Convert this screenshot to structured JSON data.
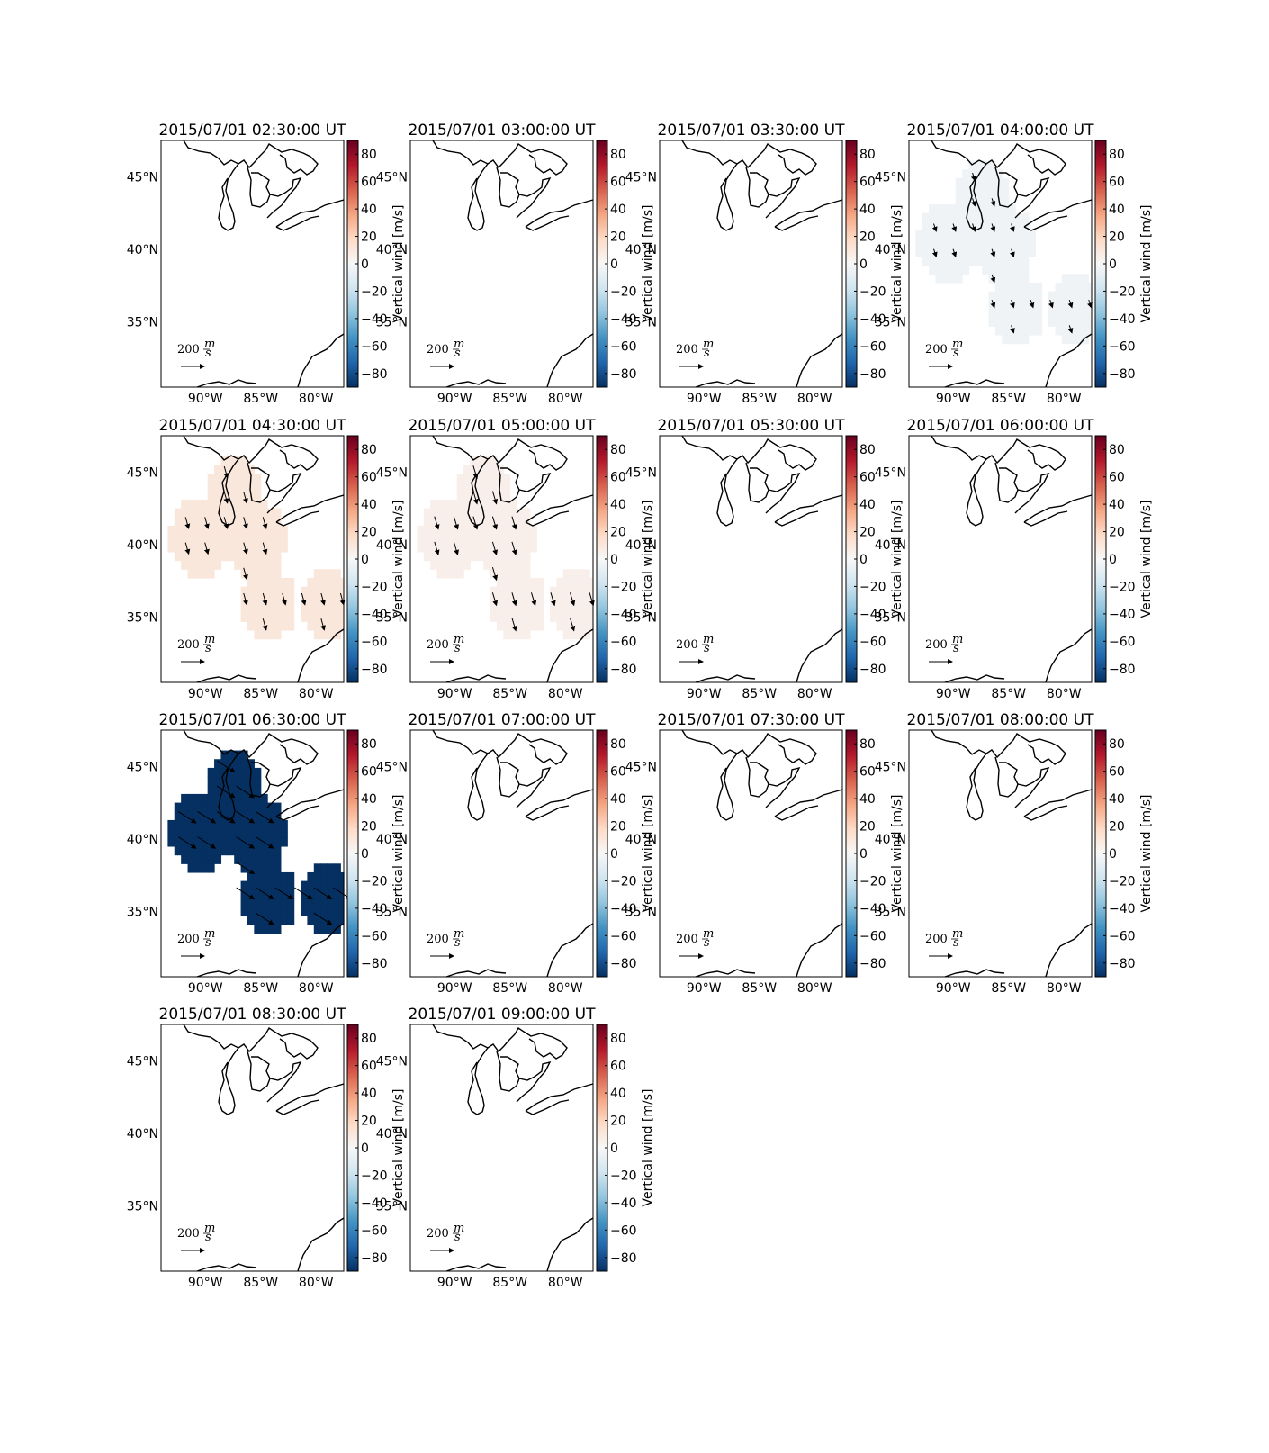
{
  "chart_data": {
    "type": "heatmap",
    "description_units": "vertical wind m/s; arrows show horizontal wind",
    "colorbar": {
      "label": "Vertical wind [m/s]",
      "range": [
        -90,
        90
      ],
      "ticks": [
        "80",
        "60",
        "40",
        "20",
        "0",
        "−20",
        "−40",
        "−60",
        "−80"
      ],
      "colormap": "RdBu_r"
    },
    "axes": {
      "x_ticks": [
        "90°W",
        "85°W",
        "80°W"
      ],
      "y_ticks": [
        "45°N",
        "40°N",
        "35°N"
      ],
      "lon_range": [
        -94,
        -77.5
      ],
      "lat_range": [
        30.5,
        47.5
      ]
    },
    "scale_arrow": {
      "label": "200",
      "unit_num": "m",
      "unit_den": "s"
    },
    "panels": [
      {
        "title": "2015/07/01 02:30:00 UT",
        "value": null,
        "arrow": null
      },
      {
        "title": "2015/07/01 03:00:00 UT",
        "value": null,
        "arrow": null
      },
      {
        "title": "2015/07/01 03:30:00 UT",
        "value": null,
        "arrow": null
      },
      {
        "title": "2015/07/01 04:00:00 UT",
        "value": -4,
        "arrow": {
          "u": 20,
          "v": -60
        }
      },
      {
        "title": "2015/07/01 04:30:00 UT",
        "value": 10,
        "arrow": {
          "u": 25,
          "v": -90
        }
      },
      {
        "title": "2015/07/01 05:00:00 UT",
        "value": 5,
        "arrow": {
          "u": 30,
          "v": -100
        }
      },
      {
        "title": "2015/07/01 05:30:00 UT",
        "value": null,
        "arrow": null
      },
      {
        "title": "2015/07/01 06:00:00 UT",
        "value": null,
        "arrow": null
      },
      {
        "title": "2015/07/01 06:30:00 UT",
        "value": -90,
        "arrow": {
          "u": 140,
          "v": -90
        }
      },
      {
        "title": "2015/07/01 07:00:00 UT",
        "value": null,
        "arrow": null
      },
      {
        "title": "2015/07/01 07:30:00 UT",
        "value": null,
        "arrow": null
      },
      {
        "title": "2015/07/01 08:00:00 UT",
        "value": null,
        "arrow": null
      },
      {
        "title": "2015/07/01 08:30:00 UT",
        "value": null,
        "arrow": null
      },
      {
        "title": "2015/07/01 09:00:00 UT",
        "value": null,
        "arrow": null
      }
    ]
  }
}
